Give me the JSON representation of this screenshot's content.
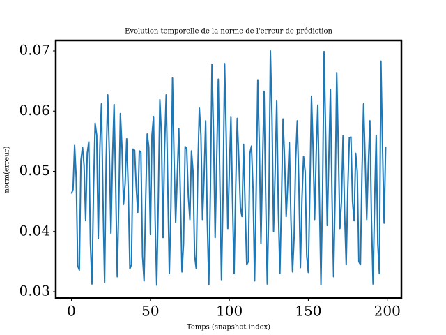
{
  "chart_data": {
    "type": "line",
    "title": "Evolution temporelle de la norme de l'erreur de prédiction",
    "xlabel": "Temps (snapshot index)",
    "ylabel": "norm(erreur)",
    "x": [
      0,
      1,
      2,
      3,
      4,
      5,
      6,
      7,
      8,
      9,
      10,
      11,
      12,
      13,
      14,
      15,
      16,
      17,
      18,
      19,
      20,
      21,
      22,
      23,
      24,
      25,
      26,
      27,
      28,
      29,
      30,
      31,
      32,
      33,
      34,
      35,
      36,
      37,
      38,
      39,
      40,
      41,
      42,
      43,
      44,
      45,
      46,
      47,
      48,
      49,
      50,
      51,
      52,
      53,
      54,
      55,
      56,
      57,
      58,
      59,
      60,
      61,
      62,
      63,
      64,
      65,
      66,
      67,
      68,
      69,
      70,
      71,
      72,
      73,
      74,
      75,
      76,
      77,
      78,
      79,
      80,
      81,
      82,
      83,
      84,
      85,
      86,
      87,
      88,
      89,
      90,
      91,
      92,
      93,
      94,
      95,
      96,
      97,
      98,
      99,
      100,
      101,
      102,
      103,
      104,
      105,
      106,
      107,
      108,
      109,
      110,
      111,
      112,
      113,
      114,
      115,
      116,
      117,
      118,
      119,
      120,
      121,
      122,
      123,
      124,
      125,
      126,
      127,
      128,
      129,
      130,
      131,
      132,
      133,
      134,
      135,
      136,
      137,
      138,
      139,
      140,
      141,
      142,
      143,
      144,
      145,
      146,
      147,
      148,
      149,
      150,
      151,
      152,
      153,
      154,
      155,
      156,
      157,
      158,
      159,
      160,
      161,
      162,
      163,
      164,
      165,
      166,
      167,
      168,
      169,
      170,
      171,
      172,
      173,
      174,
      175,
      176,
      177,
      178,
      179,
      180,
      181,
      182,
      183,
      184,
      185,
      186,
      187,
      188,
      189,
      190,
      191,
      192,
      193,
      194,
      195,
      196,
      197,
      198,
      199
    ],
    "series": [
      {
        "color": "#1f77b4",
        "values": [
          0.0463,
          0.047,
          0.0543,
          0.049,
          0.0343,
          0.0336,
          0.0518,
          0.054,
          0.051,
          0.0418,
          0.053,
          0.0549,
          0.038,
          0.0313,
          0.047,
          0.058,
          0.056,
          0.0388,
          0.054,
          0.0612,
          0.045,
          0.0315,
          0.052,
          0.0627,
          0.053,
          0.0397,
          0.052,
          0.0611,
          0.048,
          0.0325,
          0.045,
          0.0596,
          0.054,
          0.0445,
          0.048,
          0.0554,
          0.047,
          0.0338,
          0.0345,
          0.0537,
          0.0535,
          0.0475,
          0.0432,
          0.0534,
          0.0532,
          0.036,
          0.0318,
          0.045,
          0.0562,
          0.054,
          0.0395,
          0.056,
          0.0591,
          0.042,
          0.0311,
          0.045,
          0.0619,
          0.056,
          0.039,
          0.054,
          0.0627,
          0.048,
          0.033,
          0.044,
          0.0655,
          0.052,
          0.0415,
          0.049,
          0.0571,
          0.046,
          0.0333,
          0.038,
          0.0541,
          0.0538,
          0.046,
          0.042,
          0.0534,
          0.05,
          0.036,
          0.0339,
          0.05,
          0.0605,
          0.056,
          0.042,
          0.049,
          0.0584,
          0.042,
          0.0312,
          0.047,
          0.0678,
          0.056,
          0.039,
          0.052,
          0.0653,
          0.048,
          0.032,
          0.046,
          0.0679,
          0.056,
          0.0405,
          0.05,
          0.0591,
          0.045,
          0.033,
          0.047,
          0.0588,
          0.052,
          0.044,
          0.0425,
          0.0545,
          0.044,
          0.0345,
          0.035,
          0.053,
          0.0542,
          0.047,
          0.0318,
          0.047,
          0.0652,
          0.054,
          0.038,
          0.051,
          0.0633,
          0.046,
          0.0313,
          0.044,
          0.07,
          0.059,
          0.04,
          0.05,
          0.0618,
          0.044,
          0.033,
          0.045,
          0.0587,
          0.052,
          0.0425,
          0.048,
          0.0548,
          0.042,
          0.0333,
          0.039,
          0.052,
          0.0584,
          0.048,
          0.034,
          0.0455,
          0.0525,
          0.05,
          0.036,
          0.0332,
          0.047,
          0.0625,
          0.054,
          0.042,
          0.053,
          0.061,
          0.046,
          0.0312,
          0.046,
          0.0699,
          0.056,
          0.041,
          0.052,
          0.0636,
          0.046,
          0.0325,
          0.046,
          0.0664,
          0.054,
          0.0405,
          0.045,
          0.0559,
          0.043,
          0.0345,
          0.047,
          0.0556,
          0.0557,
          0.045,
          0.0418,
          0.053,
          0.05,
          0.035,
          0.0345,
          0.05,
          0.0612,
          0.052,
          0.042,
          0.051,
          0.0584,
          0.042,
          0.0313,
          0.045,
          0.056,
          0.038,
          0.033,
          0.0683,
          0.054,
          0.0414,
          0.0541
        ]
      }
    ],
    "xlim": [
      -9.95,
      208.95
    ],
    "xticks": [
      0,
      50,
      100,
      150,
      200
    ],
    "ylim": [
      0.02896,
      0.07174
    ],
    "yticks": [
      0.03,
      0.04,
      0.05,
      0.06,
      0.07
    ]
  }
}
